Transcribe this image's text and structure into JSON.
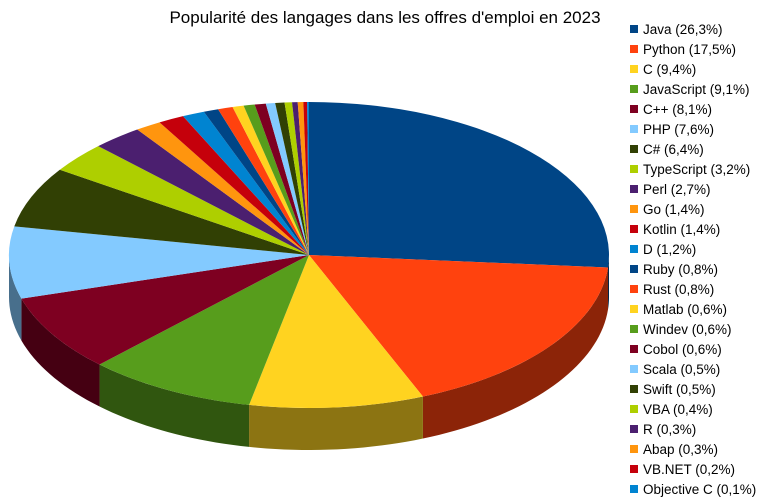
{
  "chart_data": {
    "type": "pie",
    "title": "Popularité des langages dans les offres d'emploi en 2023",
    "legend_position": "right",
    "slices": [
      {
        "label": "Java (26,3%)",
        "name": "Java",
        "value": 26.3,
        "color": "#004586"
      },
      {
        "label": "Python (17,5%)",
        "name": "Python",
        "value": 17.5,
        "color": "#ff420e"
      },
      {
        "label": "C (9,4%)",
        "name": "C",
        "value": 9.4,
        "color": "#ffd320"
      },
      {
        "label": "JavaScript (9,1%)",
        "name": "JavaScript",
        "value": 9.1,
        "color": "#579d1c"
      },
      {
        "label": "C++ (8,1%)",
        "name": "C++",
        "value": 8.1,
        "color": "#7e0021"
      },
      {
        "label": "PHP (7,6%)",
        "name": "PHP",
        "value": 7.6,
        "color": "#83caff"
      },
      {
        "label": "C# (6,4%)",
        "name": "C#",
        "value": 6.4,
        "color": "#314004"
      },
      {
        "label": "TypeScript (3,2%)",
        "name": "TypeScript",
        "value": 3.2,
        "color": "#aecf00"
      },
      {
        "label": "Perl (2,7%)",
        "name": "Perl",
        "value": 2.7,
        "color": "#4b1f6f"
      },
      {
        "label": "Go (1,4%)",
        "name": "Go",
        "value": 1.4,
        "color": "#ff950e"
      },
      {
        "label": "Kotlin (1,4%)",
        "name": "Kotlin",
        "value": 1.4,
        "color": "#c5000b"
      },
      {
        "label": "D (1,2%)",
        "name": "D",
        "value": 1.2,
        "color": "#0084d1"
      },
      {
        "label": "Ruby (0,8%)",
        "name": "Ruby",
        "value": 0.8,
        "color": "#004586"
      },
      {
        "label": "Rust (0,8%)",
        "name": "Rust",
        "value": 0.8,
        "color": "#ff420e"
      },
      {
        "label": "Matlab (0,6%)",
        "name": "Matlab",
        "value": 0.6,
        "color": "#ffd320"
      },
      {
        "label": "Windev (0,6%)",
        "name": "Windev",
        "value": 0.6,
        "color": "#579d1c"
      },
      {
        "label": "Cobol (0,6%)",
        "name": "Cobol",
        "value": 0.6,
        "color": "#7e0021"
      },
      {
        "label": "Scala (0,5%)",
        "name": "Scala",
        "value": 0.5,
        "color": "#83caff"
      },
      {
        "label": "Swift (0,5%)",
        "name": "Swift",
        "value": 0.5,
        "color": "#314004"
      },
      {
        "label": "VBA (0,4%)",
        "name": "VBA",
        "value": 0.4,
        "color": "#aecf00"
      },
      {
        "label": "R (0,3%)",
        "name": "R",
        "value": 0.3,
        "color": "#4b1f6f"
      },
      {
        "label": "Abap (0,3%)",
        "name": "Abap",
        "value": 0.3,
        "color": "#ff950e"
      },
      {
        "label": "VB.NET (0,2%)",
        "name": "VB.NET",
        "value": 0.2,
        "color": "#c5000b"
      },
      {
        "label": "Objective C (0,1%)",
        "name": "Objective C",
        "value": 0.1,
        "color": "#0084d1"
      }
    ]
  }
}
